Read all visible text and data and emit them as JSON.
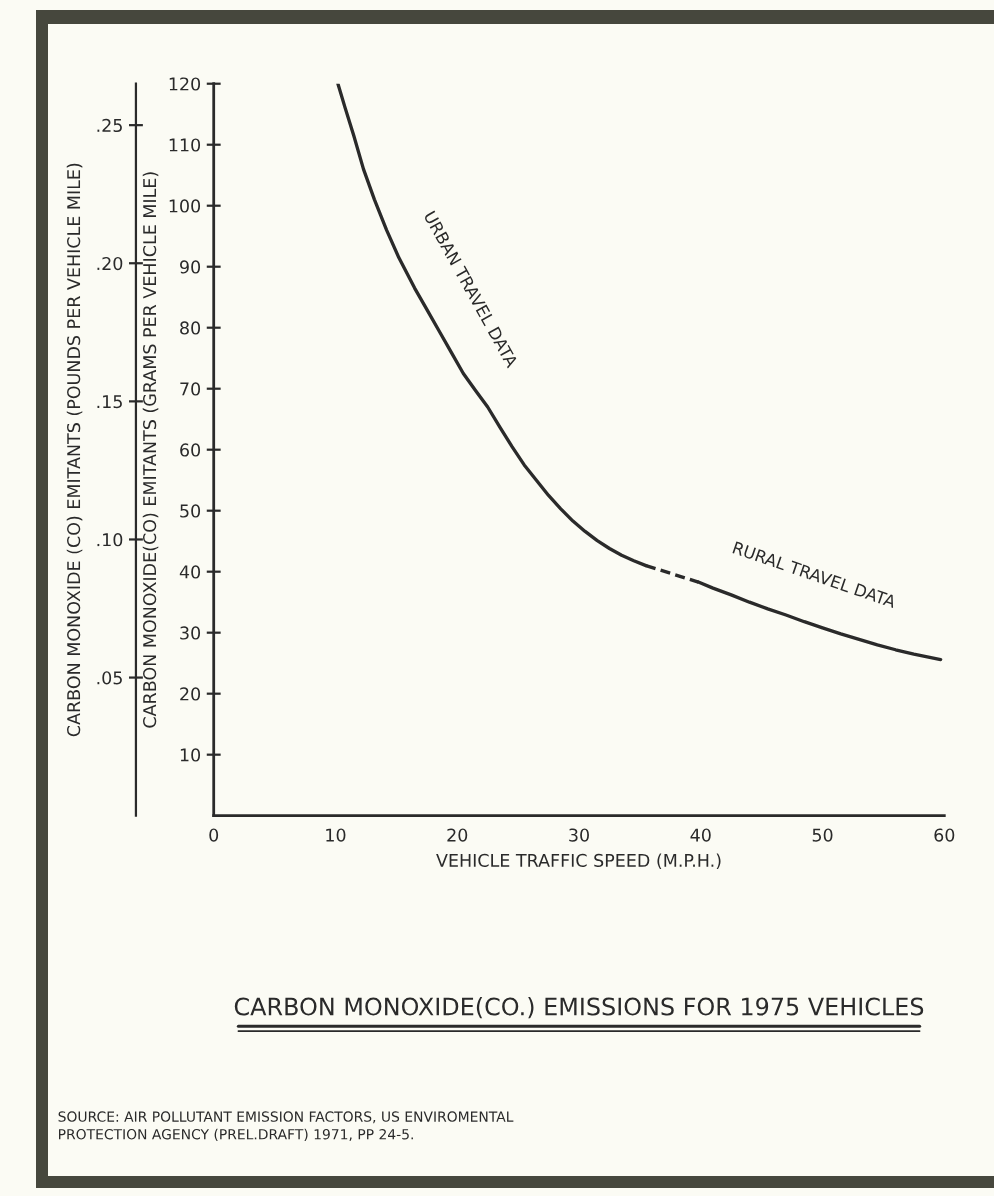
{
  "chart_data": {
    "type": "line",
    "title": "CARBON MONOXIDE(CO.) EMISSIONS FOR 1975 VEHICLES",
    "xlabel": "VEHICLE TRAFFIC SPEED (M.P.H.)",
    "ylabel": "CARBON MONOXIDE(CO) EMITANTS (GRAMS PER VEHICLE MILE)",
    "y2label": "CARBON MONOXIDE (CO) EMITANTS (POUNDS PER VEHICLE MILE)",
    "annotations": [
      "SOURCE: AIR POLLUTANT EMISSION FACTORS, US ENVIROMENTAL\nPROTECTION AGENCY (PREL.DRAFT) 1971, PP 24-5."
    ],
    "xlim": [
      0,
      60
    ],
    "xticks": [
      0,
      10,
      20,
      30,
      40,
      50,
      60
    ],
    "ylim": [
      0,
      120
    ],
    "yticks": [
      10,
      20,
      30,
      40,
      50,
      60,
      70,
      80,
      90,
      100,
      110,
      120
    ],
    "y2lim": [
      0,
      0.265
    ],
    "y2ticks": [
      {
        "value": 0.05,
        "label": ".05"
      },
      {
        "value": 0.1,
        "label": ".10"
      },
      {
        "value": 0.15,
        "label": ".15"
      },
      {
        "value": 0.2,
        "label": ".20"
      },
      {
        "value": 0.25,
        "label": ".25"
      }
    ],
    "series": [
      {
        "name": "URBAN TRAVEL DATA",
        "color": "#2a2a2a",
        "line_style": "solid",
        "x": [
          10.2,
          10.8,
          11.5,
          12.3,
          13.2,
          14.2,
          15.2,
          16.5,
          17.5,
          18.5,
          19.5,
          20.5,
          21.5,
          22.5,
          23.5,
          24.5,
          25.5,
          26.5,
          27.5,
          28.5,
          29.5,
          30.5,
          31.5,
          32.5,
          33.5,
          34.5,
          35.5
        ],
        "values": [
          120,
          116,
          111.5,
          106,
          101,
          96,
          91.5,
          86.5,
          83,
          79.5,
          76,
          72.5,
          69.7,
          67,
          63.7,
          60.5,
          57.5,
          55,
          52.5,
          50.3,
          48.3,
          46.6,
          45.1,
          43.8,
          42.7,
          41.8,
          41
        ]
      },
      {
        "color": "#2a2a2a",
        "line_style": "dashed",
        "x": [
          35.5,
          39.8
        ],
        "values": [
          41,
          38.3
        ]
      },
      {
        "name": "RURAL TRAVEL DATA",
        "color": "#2a2a2a",
        "line_style": "solid",
        "x": [
          39.8,
          41,
          42.5,
          44,
          45.5,
          47,
          48.5,
          50,
          51.5,
          53,
          54.5,
          56,
          57.5,
          59.7
        ],
        "values": [
          38.3,
          37.3,
          36.2,
          35,
          33.9,
          32.9,
          31.8,
          30.8,
          29.8,
          28.9,
          28,
          27.2,
          26.5,
          25.6
        ]
      }
    ]
  }
}
